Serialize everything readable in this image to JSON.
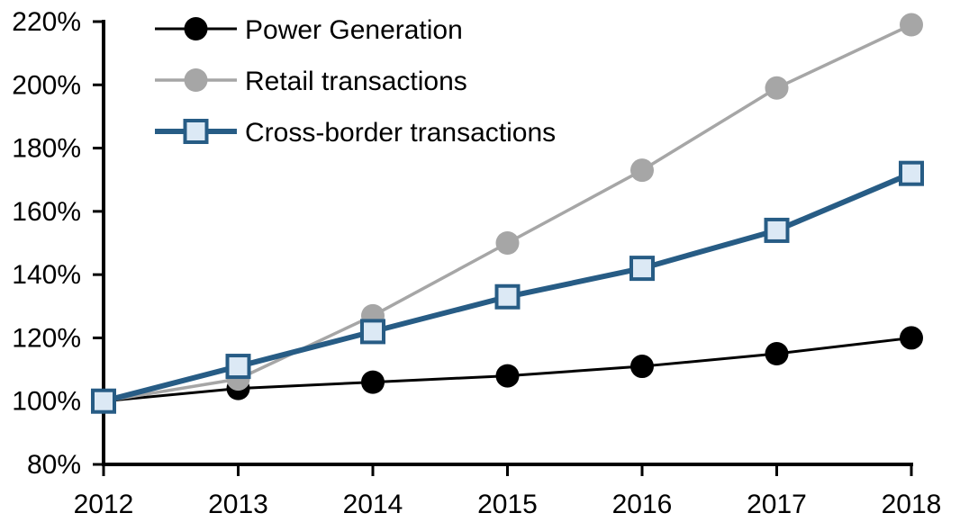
{
  "chart_data": {
    "type": "line",
    "title": "",
    "xlabel": "",
    "ylabel": "",
    "x_categories": [
      "2012",
      "2013",
      "2014",
      "2015",
      "2016",
      "2017",
      "2018"
    ],
    "y_axis": {
      "min": 80,
      "max": 220,
      "step": 20,
      "tick_labels": [
        "80%",
        "100%",
        "120%",
        "140%",
        "160%",
        "180%",
        "200%",
        "220%"
      ],
      "format": "percent"
    },
    "grid": "off",
    "legend_position": "top-left-inside",
    "series": [
      {
        "name": "Power Generation",
        "values": [
          100,
          104,
          106,
          108,
          111,
          115,
          120
        ],
        "line_color": "#000000",
        "line_width": 3,
        "marker": "circle",
        "marker_fill": "#000000",
        "marker_stroke": "none",
        "marker_size": 13
      },
      {
        "name": "Retail transactions",
        "values": [
          100,
          107,
          127,
          150,
          173,
          199,
          219
        ],
        "line_color": "#a6a6a6",
        "line_width": 3.5,
        "marker": "circle",
        "marker_fill": "#a6a6a6",
        "marker_stroke": "none",
        "marker_size": 13
      },
      {
        "name": "Cross-border transactions",
        "values": [
          100,
          111,
          122,
          133,
          142,
          154,
          172
        ],
        "line_color": "#275c85",
        "line_width": 6,
        "marker": "square",
        "marker_fill": "#dce9f5",
        "marker_stroke": "#275c85",
        "marker_size": 12
      }
    ],
    "colors": {
      "axis": "#000000",
      "background": "#ffffff",
      "accent_blue": "#275c85",
      "light_blue_fill": "#dce9f5",
      "gray": "#a6a6a6"
    },
    "layout_hints": {
      "plot_left": 115,
      "plot_right": 1012,
      "plot_top": 24,
      "plot_bottom": 516,
      "legend_line_x1": 172,
      "legend_line_x2": 263,
      "legend_text_x": 272,
      "legend_row_ys": [
        32,
        89,
        146
      ],
      "y_tick_len": 12,
      "x_tick_len": 13,
      "axis_width": 4,
      "tick_width": 3,
      "y_label_right_x": 90,
      "x_label_y": 570
    }
  }
}
